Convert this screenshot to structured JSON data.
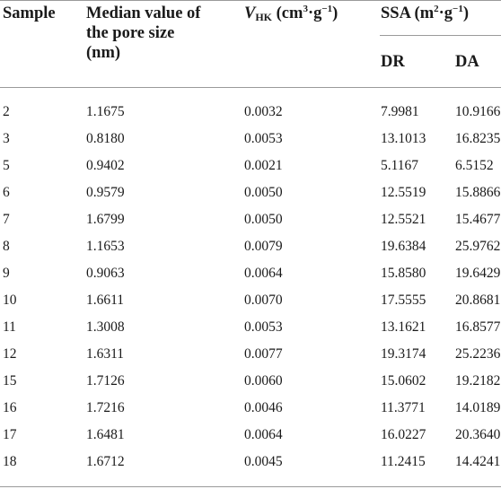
{
  "header": {
    "sample": "Sample",
    "median_line1": "Median value of",
    "median_line2": "the pore size",
    "median_line3": "(nm)",
    "vhk_v": "V",
    "vhk_sub": "HK",
    "vhk_unit_open": " (cm",
    "vhk_unit_sup": "3",
    "vhk_unit_mid": "·g",
    "vhk_unit_sup2": "−1",
    "vhk_unit_close": ")",
    "ssa_label": "SSA",
    "ssa_unit_open": " (m",
    "ssa_unit_sup": "2",
    "ssa_unit_mid": "·g",
    "ssa_unit_sup2": "−1",
    "ssa_unit_close": ")",
    "dr": "DR",
    "da": "DA"
  },
  "rows": [
    {
      "sample": "2",
      "median": "1.1675",
      "vhk": "0.0032",
      "dr": "7.9981",
      "da": "10.9166"
    },
    {
      "sample": "3",
      "median": "0.8180",
      "vhk": "0.0053",
      "dr": "13.1013",
      "da": "16.8235"
    },
    {
      "sample": "5",
      "median": "0.9402",
      "vhk": "0.0021",
      "dr": "5.1167",
      "da": "6.5152"
    },
    {
      "sample": "6",
      "median": "0.9579",
      "vhk": "0.0050",
      "dr": "12.5519",
      "da": "15.8866"
    },
    {
      "sample": "7",
      "median": "1.6799",
      "vhk": "0.0050",
      "dr": "12.5521",
      "da": "15.4677"
    },
    {
      "sample": "8",
      "median": "1.1653",
      "vhk": "0.0079",
      "dr": "19.6384",
      "da": "25.9762"
    },
    {
      "sample": "9",
      "median": "0.9063",
      "vhk": "0.0064",
      "dr": "15.8580",
      "da": "19.6429"
    },
    {
      "sample": "10",
      "median": "1.6611",
      "vhk": "0.0070",
      "dr": "17.5555",
      "da": "20.8681"
    },
    {
      "sample": "11",
      "median": "1.3008",
      "vhk": "0.0053",
      "dr": "13.1621",
      "da": "16.8577"
    },
    {
      "sample": "12",
      "median": "1.6311",
      "vhk": "0.0077",
      "dr": "19.3174",
      "da": "25.2236"
    },
    {
      "sample": "15",
      "median": "1.7126",
      "vhk": "0.0060",
      "dr": "15.0602",
      "da": "19.2182"
    },
    {
      "sample": "16",
      "median": "1.7216",
      "vhk": "0.0046",
      "dr": "11.3771",
      "da": "14.0189"
    },
    {
      "sample": "17",
      "median": "1.6481",
      "vhk": "0.0064",
      "dr": "16.0227",
      "da": "20.3640"
    },
    {
      "sample": "18",
      "median": "1.6712",
      "vhk": "0.0045",
      "dr": "11.2415",
      "da": "14.4241"
    }
  ]
}
